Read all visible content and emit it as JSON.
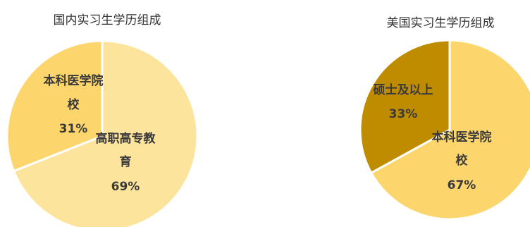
{
  "chart_data": [
    {
      "type": "pie",
      "title": "国内实习生学历组成",
      "slices": [
        {
          "label": "高职高专教育",
          "label_lines": [
            "高职高专教",
            "育"
          ],
          "value": 69,
          "value_label": "69%",
          "color": "#fde49c"
        },
        {
          "label": "本科医学院校",
          "label_lines": [
            "本科医学院",
            "校"
          ],
          "value": 31,
          "value_label": "31%",
          "color": "#fcd56c"
        }
      ]
    },
    {
      "type": "pie",
      "title": "美国实习生学历组成",
      "slices": [
        {
          "label": "本科医学院校",
          "label_lines": [
            "本科医学院",
            "校"
          ],
          "value": 67,
          "value_label": "67%",
          "color": "#fcd56c"
        },
        {
          "label": "硕士及以上",
          "label_lines": [
            "硕士及以上"
          ],
          "value": 33,
          "value_label": "33%",
          "color": "#bf8c00"
        }
      ]
    }
  ]
}
